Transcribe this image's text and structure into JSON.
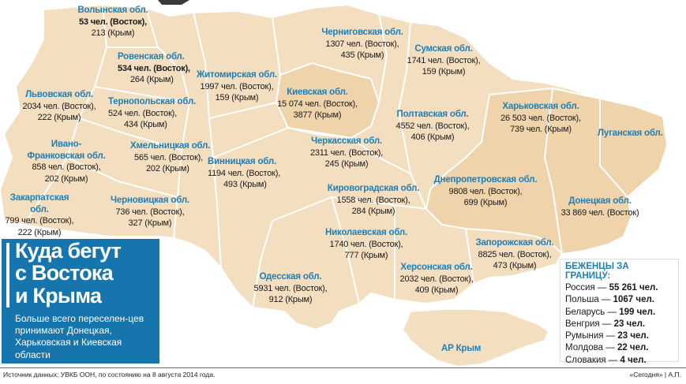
{
  "regions": {
    "volyn": {
      "name": "Волынская обл.",
      "line1": "53 чел. (Восток),",
      "line2": "213 (Крым)"
    },
    "rivne": {
      "name": "Ровенская обл.",
      "line1": "534 чел. (Восток),",
      "line2": "264 (Крым)"
    },
    "lviv": {
      "name": "Львовская обл.",
      "line1": "2034 чел. (Восток),",
      "line2": "222 (Крым)"
    },
    "ternopil": {
      "name": "Тернопольская обл.",
      "line1": "524 чел. (Восток),",
      "line2": "434 (Крым)"
    },
    "ivano": {
      "name": "Ивано-\nФранковская обл.",
      "line1": "858 чел. (Восток),",
      "line2": "202 (Крым)"
    },
    "khmelnytskyi": {
      "name": "Хмельницкая обл.",
      "line1": "565 чел. (Восток),",
      "line2": "202 (Крым)"
    },
    "zakarpattia": {
      "name": "Закарпатская обл.",
      "line1": "799 чел. (Восток),",
      "line2": "222 (Крым)"
    },
    "chernivtsi": {
      "name": "Черновицкая обл.",
      "line1": "736 чел. (Восток),",
      "line2": "327 (Крым)"
    },
    "zhytomyr": {
      "name": "Житомирская обл.",
      "line1": "1997 чел. (Восток),",
      "line2": "159 (Крым)"
    },
    "vinnytsia": {
      "name": "Винницкая обл.",
      "line1": "1194 чел. (Восток),",
      "line2": "493 (Крым)"
    },
    "kyiv": {
      "name": "Киевская обл.",
      "line1": "15 074 чел. (Восток),",
      "line2": "3877 (Крым)"
    },
    "chernihiv": {
      "name": "Черниговская обл.",
      "line1": "1307 чел. (Восток),",
      "line2": "435 (Крым)"
    },
    "sumy": {
      "name": "Сумская обл.",
      "line1": "1741 чел. (Восток),",
      "line2": "159 (Крым)"
    },
    "poltava": {
      "name": "Полтавская обл.",
      "line1": "4552 чел. (Восток),",
      "line2": "406 (Крым)"
    },
    "cherkasy": {
      "name": "Черкасская обл.",
      "line1": "2311 чел. (Восток),",
      "line2": "245 (Крым)"
    },
    "kharkiv": {
      "name": "Харьковская обл.",
      "line1": "26 503 чел. (Восток),",
      "line2": "739 чел. (Крым)"
    },
    "luhansk": {
      "name": "Луганская обл."
    },
    "kirovohrad": {
      "name": "Кировоградская обл.",
      "line1": "1558 чел. (Восток),",
      "line2": "284 (Крым)"
    },
    "dnipro": {
      "name": "Днепропетровская обл.",
      "line1": "9808 чел. (Восток),",
      "line2": "699 (Крым)"
    },
    "donetsk": {
      "name": "Донецкая обл.",
      "line1": "33 869 чел. (Восток)"
    },
    "mykolaiv": {
      "name": "Николаевская обл.",
      "line1": "1740 чел. (Восток),",
      "line2": "777 (Крым)"
    },
    "zaporizhzhia": {
      "name": "Запорожская обл.",
      "line1": "8825 чел. (Восток),",
      "line2": "473 (Крым)"
    },
    "odesa": {
      "name": "Одесская обл.",
      "line1": "5931 чел. (Восток),",
      "line2": "912 (Крым)"
    },
    "kherson": {
      "name": "Херсонская обл.",
      "line1": "2032 чел. (Восток),",
      "line2": "409 (Крым)"
    },
    "crimea": {
      "name": "АР Крым"
    }
  },
  "title_box": {
    "headline": "Куда бегут\nс Востока\nи Крыма",
    "subtitle": "Больше всего переселен-цев принимают Донецкая, Харьковская и Киевская области"
  },
  "refugees_abroad": {
    "title": "БЕЖЕНЦЫ ЗА ГРАНИЦУ:",
    "rows": [
      {
        "country": "Россия — ",
        "value": "55 261 чел."
      },
      {
        "country": "Польша — ",
        "value": "1067 чел."
      },
      {
        "country": "Беларусь — ",
        "value": "199 чел."
      },
      {
        "country": "Венгрия — ",
        "value": "23 чел."
      },
      {
        "country": "Румыния — ",
        "value": "23 чел."
      },
      {
        "country": "Молдова — ",
        "value": "22 чел."
      },
      {
        "country": "Словакия — ",
        "value": "4 чел."
      }
    ]
  },
  "footer": {
    "source": "Источник данных: УВКБ ООН, по состоянию на 8 августа 2014 года.",
    "credit": "«Сегодня» | А.П."
  },
  "colors": {
    "land": "#f3dec0",
    "land_dark": "#efd4ab",
    "border": "#ffffff",
    "label_blue": "#1f7fb5",
    "title_box": "#1675ad"
  }
}
